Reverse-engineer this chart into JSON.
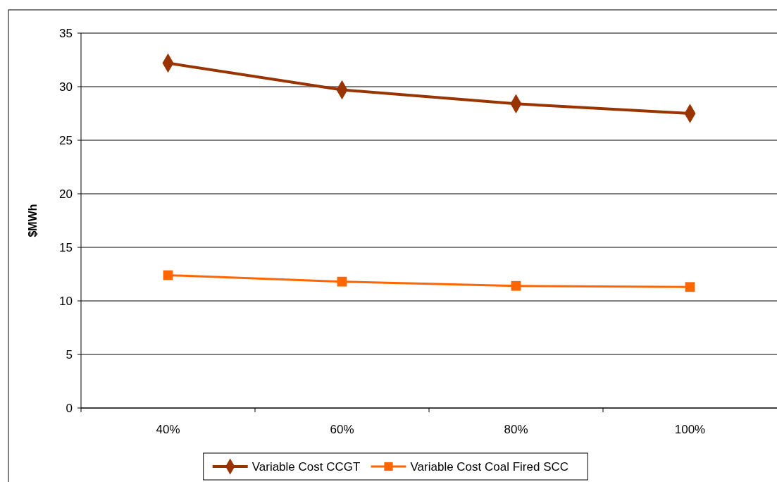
{
  "chart_data": {
    "type": "line",
    "ylabel": "$MWh",
    "categories": [
      "40%",
      "60%",
      "80%",
      "100%"
    ],
    "series": [
      {
        "name": "Variable Cost CCGT",
        "color": "#993300",
        "marker": "diamond",
        "values": [
          32.2,
          29.7,
          28.4,
          27.5
        ]
      },
      {
        "name": "Variable Cost Coal Fired SCC",
        "color": "#ff6600",
        "marker": "square",
        "values": [
          12.4,
          11.8,
          11.4,
          11.3
        ]
      }
    ],
    "ylim": [
      0,
      35
    ],
    "yticks": [
      0,
      5,
      10,
      15,
      20,
      25,
      30,
      35
    ],
    "grid": "y",
    "legend": "bottom"
  }
}
